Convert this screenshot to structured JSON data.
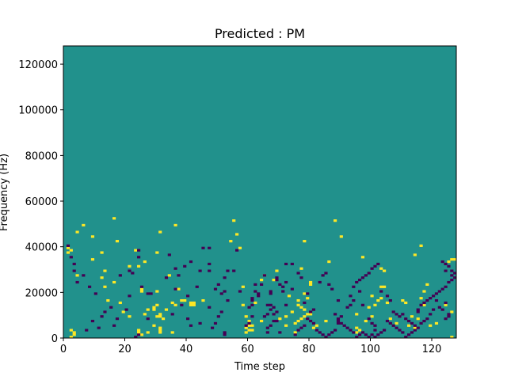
{
  "chart_data": {
    "type": "heatmap",
    "title": "Predicted : PM",
    "xlabel": "Time step",
    "ylabel": "Frequency (Hz)",
    "xlim": [
      0,
      128
    ],
    "ylim": [
      0,
      128000
    ],
    "x_ticks": [
      0,
      20,
      40,
      60,
      80,
      100,
      120
    ],
    "y_ticks": [
      0,
      20000,
      40000,
      60000,
      80000,
      100000,
      120000
    ],
    "y_tick_labels": [
      "0",
      "20000",
      "40000",
      "60000",
      "80000",
      "100000",
      "120000"
    ],
    "grid": false,
    "colors": {
      "background": "#21918c",
      "high": "#fde725",
      "low": "#440154"
    },
    "cells_high": [
      [
        2,
        0
      ],
      [
        3,
        1
      ],
      [
        3,
        2
      ],
      [
        2,
        3
      ],
      [
        25,
        1
      ],
      [
        24,
        2
      ],
      [
        27,
        2
      ],
      [
        26,
        10
      ],
      [
        31,
        2
      ],
      [
        31,
        3
      ],
      [
        24,
        3
      ],
      [
        31,
        4
      ],
      [
        29,
        5
      ],
      [
        35,
        2
      ],
      [
        27,
        12
      ],
      [
        29,
        12
      ],
      [
        29,
        13
      ],
      [
        31,
        9
      ],
      [
        31,
        10
      ],
      [
        32,
        8
      ],
      [
        33,
        12
      ],
      [
        30,
        9
      ],
      [
        30,
        14
      ],
      [
        35,
        15
      ],
      [
        36,
        14
      ],
      [
        41,
        14
      ],
      [
        41,
        15
      ],
      [
        42,
        14
      ],
      [
        42,
        15
      ],
      [
        38,
        16
      ],
      [
        39,
        16
      ],
      [
        45,
        16
      ],
      [
        30,
        20
      ],
      [
        25,
        20
      ],
      [
        25,
        21
      ],
      [
        18,
        15
      ],
      [
        24,
        31
      ],
      [
        34,
        27
      ],
      [
        26,
        33
      ],
      [
        30,
        37
      ],
      [
        31,
        46
      ],
      [
        36,
        49
      ],
      [
        37,
        21
      ],
      [
        16,
        24
      ],
      [
        21,
        31
      ],
      [
        23,
        38
      ],
      [
        9,
        34
      ],
      [
        12,
        26
      ],
      [
        13,
        22
      ],
      [
        4,
        27
      ],
      [
        1,
        37
      ],
      [
        2,
        38
      ],
      [
        1,
        39
      ],
      [
        4,
        46
      ],
      [
        6,
        49
      ],
      [
        9,
        44
      ],
      [
        12,
        37
      ],
      [
        17,
        42
      ],
      [
        16,
        52
      ],
      [
        13,
        29
      ],
      [
        21,
        9
      ],
      [
        14,
        16
      ],
      [
        19,
        11
      ],
      [
        59,
        2
      ],
      [
        60,
        3
      ],
      [
        61,
        3
      ],
      [
        59,
        4
      ],
      [
        60,
        5
      ],
      [
        61,
        5
      ],
      [
        60,
        7
      ],
      [
        59,
        9
      ],
      [
        58,
        14
      ],
      [
        58,
        22
      ],
      [
        55,
        51
      ],
      [
        54,
        42
      ],
      [
        56,
        45
      ],
      [
        57,
        39
      ],
      [
        62,
        15
      ],
      [
        64,
        7
      ],
      [
        64,
        25
      ],
      [
        65,
        27
      ],
      [
        68,
        25
      ],
      [
        69,
        29
      ],
      [
        75,
        2
      ],
      [
        72,
        5
      ],
      [
        75,
        6
      ],
      [
        76,
        7
      ],
      [
        72,
        9
      ],
      [
        77,
        8
      ],
      [
        78,
        9
      ],
      [
        79,
        10
      ],
      [
        80,
        10
      ],
      [
        74,
        11
      ],
      [
        77,
        13
      ],
      [
        78,
        12
      ],
      [
        76,
        14
      ],
      [
        76,
        16
      ],
      [
        79,
        17
      ],
      [
        78,
        19
      ],
      [
        81,
        4
      ],
      [
        82,
        5
      ],
      [
        85,
        7
      ],
      [
        80,
        23
      ],
      [
        80,
        24
      ],
      [
        77,
        30
      ],
      [
        78,
        42
      ],
      [
        86,
        33
      ],
      [
        90,
        44
      ],
      [
        95,
        10
      ],
      [
        98,
        7
      ],
      [
        100,
        9
      ],
      [
        99,
        13
      ],
      [
        101,
        14
      ],
      [
        100,
        18
      ],
      [
        102,
        16
      ],
      [
        103,
        17
      ],
      [
        105,
        15
      ],
      [
        104,
        22
      ],
      [
        106,
        8
      ],
      [
        110,
        16
      ],
      [
        111,
        15
      ],
      [
        113,
        9
      ],
      [
        115,
        8
      ],
      [
        116,
        17
      ],
      [
        118,
        23
      ],
      [
        121,
        6
      ],
      [
        117,
        14
      ],
      [
        119,
        5
      ],
      [
        124,
        14
      ],
      [
        126,
        11
      ],
      [
        95,
        4
      ],
      [
        96,
        3
      ],
      [
        108,
        6
      ],
      [
        112,
        5
      ],
      [
        114,
        4
      ],
      [
        117,
        20
      ],
      [
        114,
        36
      ],
      [
        103,
        22
      ],
      [
        88,
        51
      ],
      [
        97,
        35
      ],
      [
        103,
        30
      ],
      [
        104,
        29
      ],
      [
        116,
        40
      ],
      [
        125,
        33
      ],
      [
        126,
        34
      ],
      [
        127,
        34
      ],
      [
        126,
        0
      ],
      [
        95,
        2
      ],
      [
        70,
        8
      ],
      [
        73,
        18
      ]
    ],
    "cells_low": [
      [
        1,
        40
      ],
      [
        2,
        35
      ],
      [
        3,
        29
      ],
      [
        4,
        24
      ],
      [
        3,
        32
      ],
      [
        6,
        27
      ],
      [
        8,
        22
      ],
      [
        7,
        3
      ],
      [
        9,
        7
      ],
      [
        10,
        19
      ],
      [
        12,
        9
      ],
      [
        13,
        11
      ],
      [
        15,
        13
      ],
      [
        11,
        4
      ],
      [
        16,
        5
      ],
      [
        17,
        8
      ],
      [
        20,
        12
      ],
      [
        21,
        18
      ],
      [
        21,
        29
      ],
      [
        24,
        38
      ],
      [
        22,
        28
      ],
      [
        18,
        27
      ],
      [
        28,
        19
      ],
      [
        27,
        19
      ],
      [
        35,
        10
      ],
      [
        33,
        26
      ],
      [
        37,
        27
      ],
      [
        39,
        31
      ],
      [
        41,
        33
      ],
      [
        40,
        8
      ],
      [
        41,
        5
      ],
      [
        40,
        18
      ],
      [
        36,
        21
      ],
      [
        24,
        35
      ],
      [
        25,
        22
      ],
      [
        27,
        8
      ],
      [
        36,
        30
      ],
      [
        34,
        36
      ],
      [
        38,
        14
      ],
      [
        23,
        0
      ],
      [
        24,
        1
      ],
      [
        44,
        6
      ],
      [
        47,
        13
      ],
      [
        49,
        21
      ],
      [
        50,
        23
      ],
      [
        51,
        19
      ],
      [
        52,
        20
      ],
      [
        52,
        26
      ],
      [
        53,
        29
      ],
      [
        55,
        29
      ],
      [
        56,
        38
      ],
      [
        57,
        20
      ],
      [
        53,
        16
      ],
      [
        47,
        29
      ],
      [
        47,
        32
      ],
      [
        44,
        29
      ],
      [
        45,
        39
      ],
      [
        43,
        22
      ],
      [
        47,
        39
      ],
      [
        48,
        4
      ],
      [
        49,
        6
      ],
      [
        50,
        9
      ],
      [
        51,
        11
      ],
      [
        52,
        1
      ],
      [
        52,
        2
      ],
      [
        61,
        16
      ],
      [
        61,
        17
      ],
      [
        62,
        20
      ],
      [
        62,
        23
      ],
      [
        63,
        18
      ],
      [
        63,
        19
      ],
      [
        64,
        23
      ],
      [
        65,
        27
      ],
      [
        67,
        19
      ],
      [
        67,
        20
      ],
      [
        69,
        25
      ],
      [
        69,
        26
      ],
      [
        70,
        23
      ],
      [
        71,
        22
      ],
      [
        71,
        20
      ],
      [
        72,
        14
      ],
      [
        74,
        21
      ],
      [
        72,
        32
      ],
      [
        70,
        2
      ],
      [
        66,
        2
      ],
      [
        60,
        6
      ],
      [
        59,
        5
      ],
      [
        61,
        9
      ],
      [
        60,
        13
      ],
      [
        61,
        14
      ],
      [
        66,
        14
      ],
      [
        67,
        14
      ],
      [
        68,
        13
      ],
      [
        67,
        12
      ],
      [
        69,
        11
      ],
      [
        68,
        10
      ],
      [
        65,
        9
      ],
      [
        66,
        10
      ],
      [
        68,
        7
      ],
      [
        69,
        7
      ],
      [
        67,
        5
      ],
      [
        66,
        4
      ],
      [
        72,
        24
      ],
      [
        74,
        32
      ],
      [
        76,
        28
      ],
      [
        77,
        26
      ],
      [
        79,
        19
      ],
      [
        78,
        15
      ],
      [
        80,
        11
      ],
      [
        81,
        12
      ],
      [
        83,
        24
      ],
      [
        84,
        27
      ],
      [
        85,
        28
      ],
      [
        86,
        23
      ],
      [
        87,
        21
      ],
      [
        88,
        10
      ],
      [
        89,
        6
      ],
      [
        89,
        8
      ],
      [
        90,
        9
      ],
      [
        89,
        16
      ],
      [
        92,
        13
      ],
      [
        93,
        14
      ],
      [
        93,
        18
      ],
      [
        94,
        16
      ],
      [
        94,
        22
      ],
      [
        95,
        24
      ],
      [
        96,
        25
      ],
      [
        97,
        26
      ],
      [
        98,
        27
      ],
      [
        99,
        28
      ],
      [
        100,
        30
      ],
      [
        101,
        31
      ],
      [
        102,
        32
      ],
      [
        96,
        20
      ],
      [
        97,
        14
      ],
      [
        99,
        8
      ],
      [
        100,
        6
      ],
      [
        101,
        5
      ],
      [
        101,
        3
      ],
      [
        103,
        20
      ],
      [
        105,
        18
      ],
      [
        106,
        16
      ],
      [
        107,
        11
      ],
      [
        108,
        10
      ],
      [
        109,
        9
      ],
      [
        110,
        10
      ],
      [
        111,
        8
      ],
      [
        112,
        7
      ],
      [
        113,
        6
      ],
      [
        114,
        5
      ],
      [
        115,
        11
      ],
      [
        115,
        12
      ],
      [
        116,
        14
      ],
      [
        117,
        15
      ],
      [
        118,
        16
      ],
      [
        119,
        17
      ],
      [
        120,
        18
      ],
      [
        121,
        19
      ],
      [
        122,
        20
      ],
      [
        123,
        21
      ],
      [
        124,
        22
      ],
      [
        125,
        24
      ],
      [
        126,
        25
      ],
      [
        127,
        26
      ],
      [
        123,
        33
      ],
      [
        124,
        32
      ],
      [
        125,
        31
      ],
      [
        124,
        29
      ],
      [
        126,
        29
      ],
      [
        127,
        28
      ],
      [
        126,
        27
      ],
      [
        124,
        15
      ],
      [
        125,
        10
      ],
      [
        125,
        9
      ],
      [
        124,
        8
      ],
      [
        123,
        12
      ],
      [
        122,
        13
      ],
      [
        121,
        16
      ],
      [
        120,
        12
      ],
      [
        119,
        10
      ],
      [
        118,
        8
      ],
      [
        117,
        7
      ],
      [
        116,
        6
      ],
      [
        115,
        4
      ],
      [
        114,
        3
      ],
      [
        113,
        2
      ],
      [
        112,
        1
      ],
      [
        111,
        0
      ],
      [
        110,
        2
      ],
      [
        109,
        3
      ],
      [
        108,
        4
      ],
      [
        107,
        5
      ],
      [
        106,
        6
      ],
      [
        105,
        7
      ],
      [
        104,
        3
      ],
      [
        103,
        2
      ],
      [
        102,
        1
      ],
      [
        101,
        0
      ],
      [
        100,
        1
      ],
      [
        99,
        0
      ],
      [
        98,
        1
      ],
      [
        97,
        2
      ],
      [
        96,
        1
      ],
      [
        95,
        0
      ],
      [
        94,
        2
      ],
      [
        93,
        3
      ],
      [
        92,
        4
      ],
      [
        91,
        5
      ],
      [
        90,
        6
      ],
      [
        89,
        7
      ],
      [
        88,
        3
      ],
      [
        87,
        2
      ],
      [
        86,
        1
      ],
      [
        85,
        0
      ],
      [
        84,
        1
      ],
      [
        83,
        2
      ],
      [
        82,
        3
      ],
      [
        81,
        6
      ],
      [
        80,
        7
      ],
      [
        79,
        8
      ],
      [
        78,
        5
      ],
      [
        77,
        4
      ],
      [
        76,
        3
      ],
      [
        75,
        1
      ]
    ]
  }
}
